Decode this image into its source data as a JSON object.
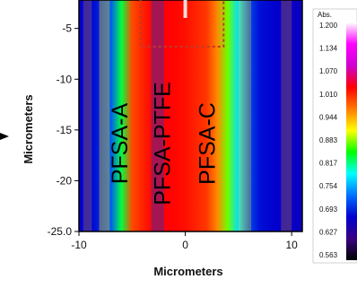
{
  "chart_data": {
    "type": "heatmap",
    "xlabel": "Micrometers",
    "ylabel": "Micrometers",
    "xlim": [
      -10,
      11
    ],
    "ylim": [
      -25,
      -2.2
    ],
    "x_ticks": [
      {
        "value": -10,
        "label": "-10"
      },
      {
        "value": 0,
        "label": "0"
      },
      {
        "value": 10,
        "label": "10"
      }
    ],
    "y_ticks": [
      {
        "value": -5,
        "label": "-5"
      },
      {
        "value": -10,
        "label": "-10"
      },
      {
        "value": -15,
        "label": "-15"
      },
      {
        "value": -20,
        "label": "-20"
      },
      {
        "value": -25,
        "label": "-25.0"
      }
    ],
    "regions": [
      {
        "label": "PFSA-A",
        "x": -6.2
      },
      {
        "label": "PFSA-PTFE",
        "x": -2.2
      },
      {
        "label": "PFSA-C",
        "x": 2.0
      }
    ],
    "profile": {
      "x": [
        -10,
        -8.5,
        -7,
        -6,
        -5,
        -4,
        -3,
        -2,
        -1,
        0,
        1,
        2,
        3,
        4,
        5,
        6,
        7,
        8.5,
        11
      ],
      "abs": [
        0.65,
        0.66,
        0.7,
        0.82,
        0.98,
        1.0,
        1.02,
        1.02,
        1.015,
        1.01,
        1.0,
        0.99,
        0.95,
        0.86,
        0.76,
        0.69,
        0.66,
        0.65,
        0.64
      ]
    },
    "dashed_box": {
      "x": [
        -4.2,
        3.6
      ],
      "y": [
        -2.2,
        -6.8
      ],
      "color": "#c0392b"
    },
    "colorbar": {
      "title": "Abs.",
      "labels": [
        "1.200",
        "1.134",
        "1.070",
        "1.010",
        "0.944",
        "0.883",
        "0.817",
        "0.754",
        "0.693",
        "0.627",
        "0.563"
      ],
      "colors": [
        "#ffffff",
        "#ff00ff",
        "#d000d0",
        "#ff0000",
        "#ff7a00",
        "#ffff00",
        "#00ff00",
        "#00ffff",
        "#0070ff",
        "#0000d0",
        "#3a0080",
        "#000000"
      ]
    }
  }
}
